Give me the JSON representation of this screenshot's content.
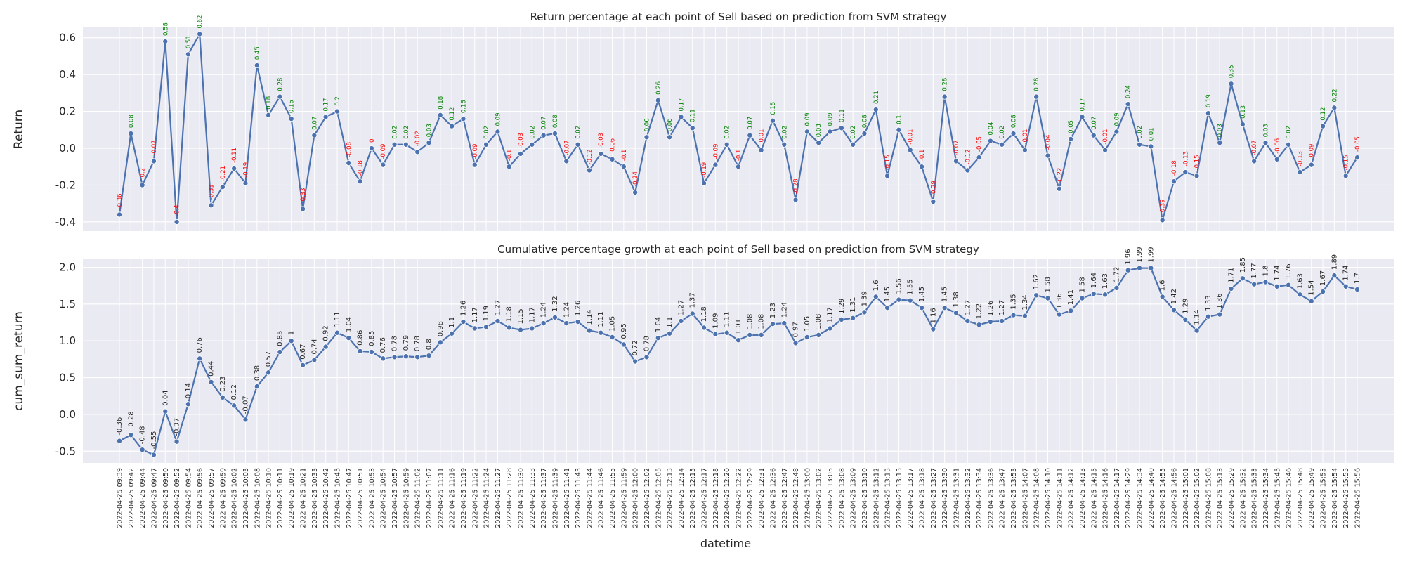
{
  "chart_data": [
    {
      "type": "line",
      "title": "Return percentage at each point of Sell based on prediction from SVM strategy",
      "xlabel": "",
      "ylabel": "Return",
      "ylim": [
        -0.45,
        0.66
      ],
      "yticks": [
        -0.4,
        -0.2,
        0.0,
        0.2,
        0.4,
        0.6
      ],
      "grid": true,
      "label_colors": {
        "positive": "#008000",
        "negative": "#ff0000"
      },
      "series": [
        {
          "values": [
            -0.36,
            0.08,
            -0.2,
            -0.07,
            0.58,
            -0.4,
            0.51,
            0.62,
            -0.31,
            -0.21,
            -0.11,
            -0.19,
            0.45,
            0.18,
            0.28,
            0.16,
            -0.33,
            0.07,
            0.17,
            0.2,
            -0.08,
            -0.18,
            -0.0,
            -0.09,
            0.02,
            0.02,
            -0.02,
            0.03,
            0.18,
            0.12,
            0.16,
            -0.09,
            0.02,
            0.09,
            -0.1,
            -0.03,
            0.02,
            0.07,
            0.08,
            -0.07,
            0.02,
            -0.12,
            -0.03,
            -0.06,
            -0.1,
            -0.24,
            0.06,
            0.26,
            0.06,
            0.17,
            0.11,
            -0.19,
            -0.09,
            0.02,
            -0.1,
            0.07,
            -0.01,
            0.15,
            0.02,
            -0.28,
            0.09,
            0.03,
            0.09,
            0.11,
            0.02,
            0.08,
            0.21,
            -0.15,
            0.1,
            -0.01,
            -0.1,
            -0.29,
            0.28,
            -0.07,
            -0.12,
            -0.05,
            0.04,
            0.02,
            0.08,
            -0.01,
            0.28,
            -0.04,
            -0.22,
            0.05,
            0.17,
            0.07,
            -0.01,
            0.09,
            0.24,
            0.02,
            0.01,
            -0.39,
            -0.18,
            -0.13,
            -0.15,
            0.19,
            0.03,
            0.35,
            0.13,
            -0.07,
            0.03,
            -0.06,
            0.02,
            -0.13,
            -0.09,
            0.12,
            0.22,
            -0.15,
            -0.05
          ]
        }
      ]
    },
    {
      "type": "line",
      "title": "Cumulative percentage growth at each point of Sell based on prediction from SVM strategy",
      "xlabel": "datetime",
      "ylabel": "cum_sum_return",
      "ylim": [
        -0.66,
        2.12
      ],
      "yticks": [
        -0.5,
        0.0,
        0.5,
        1.0,
        1.5,
        2.0
      ],
      "grid": true,
      "series": [
        {
          "values": [
            -0.36,
            -0.28,
            -0.48,
            -0.55,
            0.04,
            -0.37,
            0.14,
            0.76,
            0.44,
            0.23,
            0.12,
            -0.07,
            0.38,
            0.57,
            0.85,
            1.0,
            0.67,
            0.74,
            0.92,
            1.11,
            1.04,
            0.86,
            0.85,
            0.76,
            0.78,
            0.79,
            0.78,
            0.8,
            0.98,
            1.1,
            1.26,
            1.17,
            1.19,
            1.27,
            1.18,
            1.15,
            1.17,
            1.24,
            1.32,
            1.24,
            1.26,
            1.14,
            1.11,
            1.05,
            0.95,
            0.72,
            0.78,
            1.04,
            1.1,
            1.27,
            1.37,
            1.18,
            1.09,
            1.11,
            1.01,
            1.08,
            1.08,
            1.23,
            1.24,
            0.97,
            1.05,
            1.08,
            1.17,
            1.29,
            1.31,
            1.39,
            1.6,
            1.45,
            1.56,
            1.55,
            1.45,
            1.16,
            1.45,
            1.38,
            1.27,
            1.22,
            1.26,
            1.27,
            1.35,
            1.34,
            1.62,
            1.58,
            1.36,
            1.41,
            1.58,
            1.64,
            1.63,
            1.72,
            1.96,
            1.99,
            1.99,
            1.6,
            1.42,
            1.29,
            1.14,
            1.33,
            1.36,
            1.71,
            1.85,
            1.77,
            1.8,
            1.74,
            1.76,
            1.63,
            1.54,
            1.67,
            1.89,
            1.74,
            1.7
          ]
        }
      ],
      "x": [
        "2022-04-25 09:39",
        "2022-04-25 09:42",
        "2022-04-25 09:44",
        "2022-04-25 09:47",
        "2022-04-25 09:50",
        "2022-04-25 09:52",
        "2022-04-25 09:54",
        "2022-04-25 09:56",
        "2022-04-25 09:57",
        "2022-04-25 09:59",
        "2022-04-25 10:02",
        "2022-04-25 10:03",
        "2022-04-25 10:08",
        "2022-04-25 10:10",
        "2022-04-25 10:11",
        "2022-04-25 10:19",
        "2022-04-25 10:21",
        "2022-04-25 10:33",
        "2022-04-25 10:42",
        "2022-04-25 10:45",
        "2022-04-25 10:47",
        "2022-04-25 10:51",
        "2022-04-25 10:53",
        "2022-04-25 10:54",
        "2022-04-25 10:57",
        "2022-04-25 10:59",
        "2022-04-25 11:02",
        "2022-04-25 11:07",
        "2022-04-25 11:11",
        "2022-04-25 11:16",
        "2022-04-25 11:19",
        "2022-04-25 11:22",
        "2022-04-25 11:24",
        "2022-04-25 11:27",
        "2022-04-25 11:28",
        "2022-04-25 11:30",
        "2022-04-25 11:33",
        "2022-04-25 11:37",
        "2022-04-25 11:39",
        "2022-04-25 11:41",
        "2022-04-25 11:43",
        "2022-04-25 11:44",
        "2022-04-25 11:46",
        "2022-04-25 11:55",
        "2022-04-25 11:59",
        "2022-04-25 12:00",
        "2022-04-25 12:02",
        "2022-04-25 12:05",
        "2022-04-25 12:13",
        "2022-04-25 12:14",
        "2022-04-25 12:15",
        "2022-04-25 12:17",
        "2022-04-25 12:18",
        "2022-04-25 12:20",
        "2022-04-25 12:22",
        "2022-04-25 12:29",
        "2022-04-25 12:31",
        "2022-04-25 12:36",
        "2022-04-25 12:47",
        "2022-04-25 12:48",
        "2022-04-25 13:00",
        "2022-04-25 13:02",
        "2022-04-25 13:05",
        "2022-04-25 13:08",
        "2022-04-25 13:09",
        "2022-04-25 13:10",
        "2022-04-25 13:12",
        "2022-04-25 13:13",
        "2022-04-25 13:15",
        "2022-04-25 13:17",
        "2022-04-25 13:18",
        "2022-04-25 13:27",
        "2022-04-25 13:30",
        "2022-04-25 13:31",
        "2022-04-25 13:32",
        "2022-04-25 13:34",
        "2022-04-25 13:36",
        "2022-04-25 13:47",
        "2022-04-25 13:53",
        "2022-04-25 14:07",
        "2022-04-25 14:08",
        "2022-04-25 14:10",
        "2022-04-25 14:11",
        "2022-04-25 14:12",
        "2022-04-25 14:13",
        "2022-04-25 14:15",
        "2022-04-25 14:16",
        "2022-04-25 14:17",
        "2022-04-25 14:29",
        "2022-04-25 14:34",
        "2022-04-25 14:40",
        "2022-04-25 14:55",
        "2022-04-25 14:56",
        "2022-04-25 15:01",
        "2022-04-25 15:02",
        "2022-04-25 15:08",
        "2022-04-25 15:13",
        "2022-04-25 15:29",
        "2022-04-25 15:32",
        "2022-04-25 15:33",
        "2022-04-25 15:34",
        "2022-04-25 15:45",
        "2022-04-25 15:46",
        "2022-04-25 15:48",
        "2022-04-25 15:49",
        "2022-04-25 15:53",
        "2022-04-25 15:54",
        "2022-04-25 15:55",
        "2022-04-25 15:56"
      ]
    }
  ],
  "style": {
    "background": "#ffffff",
    "plot_background": "#eaeaf2",
    "grid_color": "#ffffff",
    "line_color": "#4c72b0",
    "point_color": "#4c72b0",
    "text_color": "#262626",
    "value_label_color": "#262626"
  }
}
